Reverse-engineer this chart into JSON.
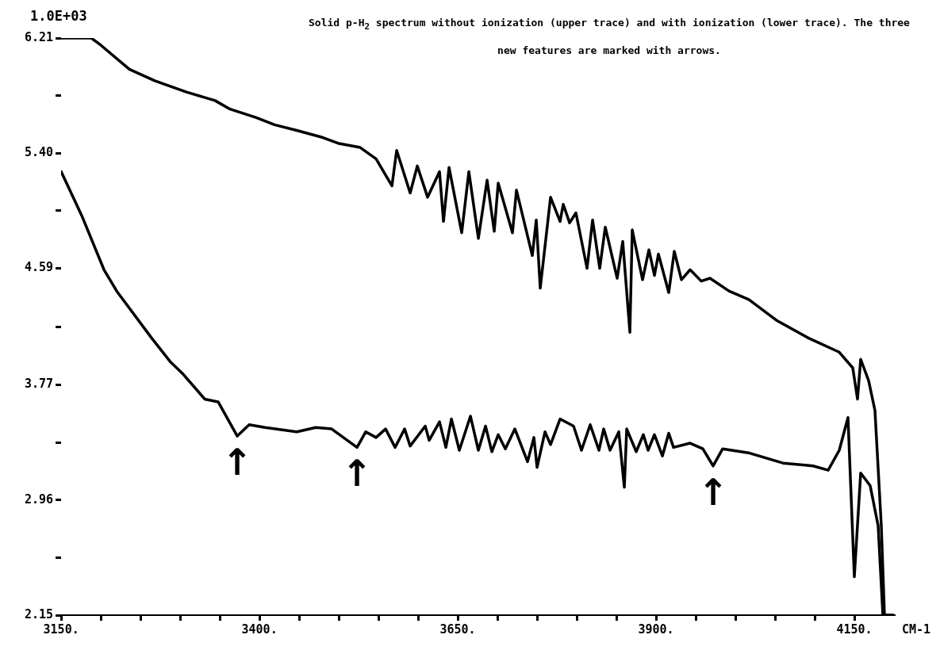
{
  "chart_data": {
    "type": "line",
    "title": "Solid p-H$_{2}$ spectrum without ionization (upper trace) and with ionization (lower trace).  The three new features are marked with arrows.",
    "ylabel": "1.0E+03",
    "xlabel": "CM-1",
    "xlim": [
      3150,
      4200
    ],
    "ylim": [
      2.15,
      6.21
    ],
    "xticks": [
      {
        "value": 3150,
        "label": "3150."
      },
      {
        "value": 3200,
        "label": null
      },
      {
        "value": 3250,
        "label": null
      },
      {
        "value": 3300,
        "label": null
      },
      {
        "value": 3350,
        "label": null
      },
      {
        "value": 3400,
        "label": "3400."
      },
      {
        "value": 3450,
        "label": null
      },
      {
        "value": 3500,
        "label": null
      },
      {
        "value": 3550,
        "label": null
      },
      {
        "value": 3600,
        "label": null
      },
      {
        "value": 3650,
        "label": "3650."
      },
      {
        "value": 3700,
        "label": null
      },
      {
        "value": 3750,
        "label": null
      },
      {
        "value": 3800,
        "label": null
      },
      {
        "value": 3850,
        "label": null
      },
      {
        "value": 3900,
        "label": "3900."
      },
      {
        "value": 3950,
        "label": null
      },
      {
        "value": 4000,
        "label": null
      },
      {
        "value": 4050,
        "label": null
      },
      {
        "value": 4100,
        "label": null
      },
      {
        "value": 4150,
        "label": "4150."
      }
    ],
    "yticks": [
      2.15,
      {
        "value": 2.555,
        "label": null
      },
      2.96,
      {
        "value": 3.365,
        "label": null
      },
      3.77,
      {
        "value": 4.18,
        "label": null
      },
      4.59,
      {
        "value": 4.995,
        "label": null
      },
      {
        "value": 5.4,
        "label": "5.40"
      },
      {
        "value": 5.805,
        "label": null
      },
      6.21
    ],
    "marker": "none",
    "line_style": "solid",
    "series": [
      {
        "color": "#000000",
        "x": [
          3150,
          3188,
          3200,
          3236,
          3268,
          3308,
          3344,
          3363,
          3396,
          3419,
          3447,
          3480,
          3499,
          3527,
          3547,
          3567,
          3573,
          3590,
          3599,
          3612,
          3627,
          3632,
          3639,
          3655,
          3664,
          3676,
          3687,
          3696,
          3701,
          3719,
          3724,
          3744,
          3749,
          3754,
          3767,
          3779,
          3783,
          3791,
          3799,
          3813,
          3820,
          3829,
          3836,
          3851,
          3858,
          3867,
          3870,
          3883,
          3891,
          3898,
          3903,
          3916,
          3923,
          3932,
          3943,
          3957,
          3968,
          3992,
          4017,
          4053,
          4092,
          4131,
          4148,
          4154,
          4158,
          4168,
          4176,
          4184,
          4188,
          4199
        ],
        "values": [
          6.21,
          6.21,
          6.16,
          5.99,
          5.91,
          5.83,
          5.77,
          5.71,
          5.65,
          5.6,
          5.56,
          5.51,
          5.47,
          5.44,
          5.36,
          5.17,
          5.42,
          5.12,
          5.31,
          5.09,
          5.27,
          4.92,
          5.3,
          4.84,
          5.27,
          4.8,
          5.21,
          4.85,
          5.19,
          4.84,
          5.14,
          4.68,
          4.93,
          4.45,
          5.09,
          4.92,
          5.04,
          4.91,
          4.98,
          4.59,
          4.93,
          4.59,
          4.88,
          4.52,
          4.78,
          4.14,
          4.86,
          4.51,
          4.72,
          4.54,
          4.69,
          4.42,
          4.71,
          4.51,
          4.58,
          4.5,
          4.52,
          4.43,
          4.37,
          4.22,
          4.1,
          4.0,
          3.89,
          3.67,
          3.95,
          3.8,
          3.59,
          2.78,
          2.15,
          2.15
        ]
      },
      {
        "color": "#000000",
        "x": [
          3150,
          3176,
          3204,
          3220,
          3264,
          3288,
          3303,
          3331,
          3348,
          3372,
          3387,
          3407,
          3447,
          3471,
          3491,
          3523,
          3534,
          3547,
          3559,
          3571,
          3583,
          3590,
          3609,
          3614,
          3627,
          3635,
          3642,
          3652,
          3666,
          3676,
          3685,
          3693,
          3701,
          3710,
          3722,
          3738,
          3746,
          3750,
          3760,
          3767,
          3779,
          3796,
          3806,
          3817,
          3828,
          3834,
          3842,
          3853,
          3860,
          3863,
          3875,
          3884,
          3890,
          3898,
          3908,
          3916,
          3922,
          3943,
          3959,
          3972,
          3984,
          4018,
          4060,
          4098,
          4117,
          4131,
          4142,
          4150,
          4158,
          4170,
          4180,
          4186,
          4199
        ],
        "values": [
          5.27,
          4.96,
          4.58,
          4.43,
          4.1,
          3.93,
          3.85,
          3.67,
          3.65,
          3.41,
          3.49,
          3.47,
          3.44,
          3.47,
          3.46,
          3.33,
          3.44,
          3.4,
          3.46,
          3.33,
          3.46,
          3.34,
          3.48,
          3.38,
          3.51,
          3.33,
          3.53,
          3.31,
          3.55,
          3.31,
          3.48,
          3.3,
          3.42,
          3.32,
          3.46,
          3.23,
          3.4,
          3.19,
          3.44,
          3.35,
          3.53,
          3.48,
          3.31,
          3.49,
          3.31,
          3.46,
          3.31,
          3.44,
          3.05,
          3.46,
          3.3,
          3.42,
          3.31,
          3.42,
          3.27,
          3.43,
          3.33,
          3.36,
          3.32,
          3.2,
          3.32,
          3.29,
          3.22,
          3.2,
          3.17,
          3.31,
          3.54,
          2.42,
          3.15,
          3.06,
          2.78,
          2.15,
          2.15
        ]
      }
    ],
    "annotations": [
      {
        "text": "↑",
        "x": 3372,
        "y": 3.41
      },
      {
        "text": "↑",
        "x": 3523,
        "y": 3.33
      },
      {
        "text": "↑",
        "x": 3972,
        "y": 3.2
      }
    ]
  }
}
